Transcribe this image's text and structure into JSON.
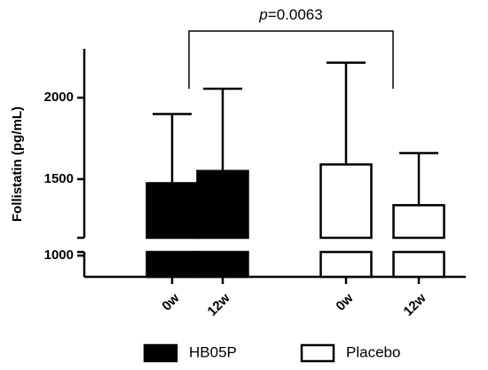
{
  "chart_data": {
    "type": "bar",
    "ylabel": "Follistatin (pg/mL)",
    "categories": [
      "0w",
      "12w",
      "0w",
      "12w"
    ],
    "series": [
      {
        "name": "HB05P",
        "color": "#000000",
        "values": [
          1475,
          1550,
          null,
          null
        ],
        "errors": [
          425,
          505,
          null,
          null
        ]
      },
      {
        "name": "Placebo",
        "color": "#ffffff",
        "values": [
          null,
          null,
          1590,
          1340
        ],
        "errors": [
          null,
          null,
          625,
          320
        ]
      }
    ],
    "ylim": [
      1140,
      2300
    ],
    "yticks": [
      1500,
      2000
    ],
    "lower_ylim": [
      870,
      1022
    ],
    "lower_yticks": [
      1000
    ],
    "annotation": {
      "italic": "p",
      "text": "=0.0063"
    },
    "legend": "bottom"
  }
}
